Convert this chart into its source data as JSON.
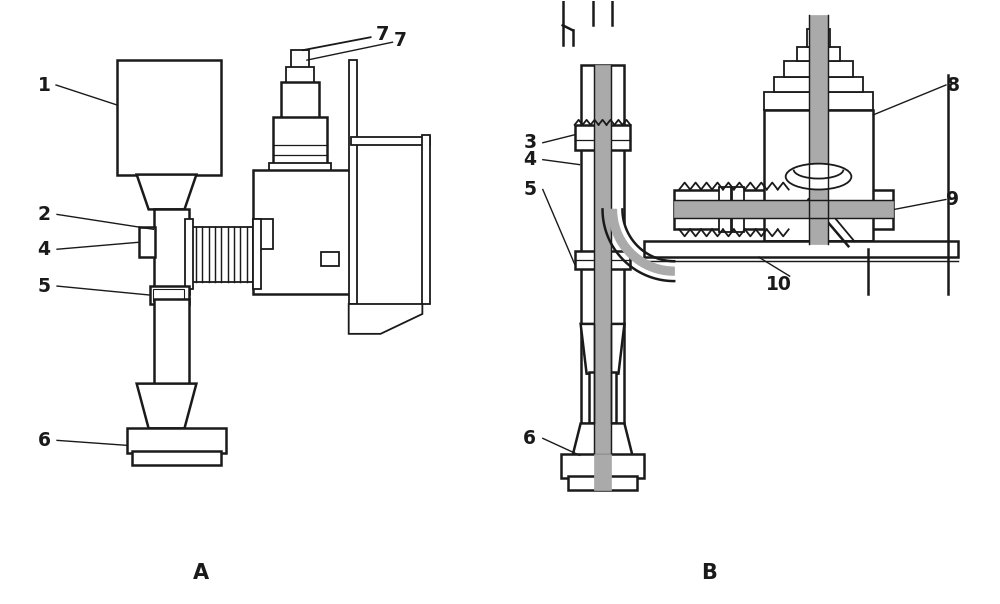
{
  "bg_color": "#ffffff",
  "lc": "#1a1a1a",
  "gray": "#aaaaaa",
  "lgray": "#e0e0e0",
  "lw": 1.3,
  "lw2": 1.8,
  "figsize": [
    10.0,
    6.04
  ],
  "dpi": 100
}
